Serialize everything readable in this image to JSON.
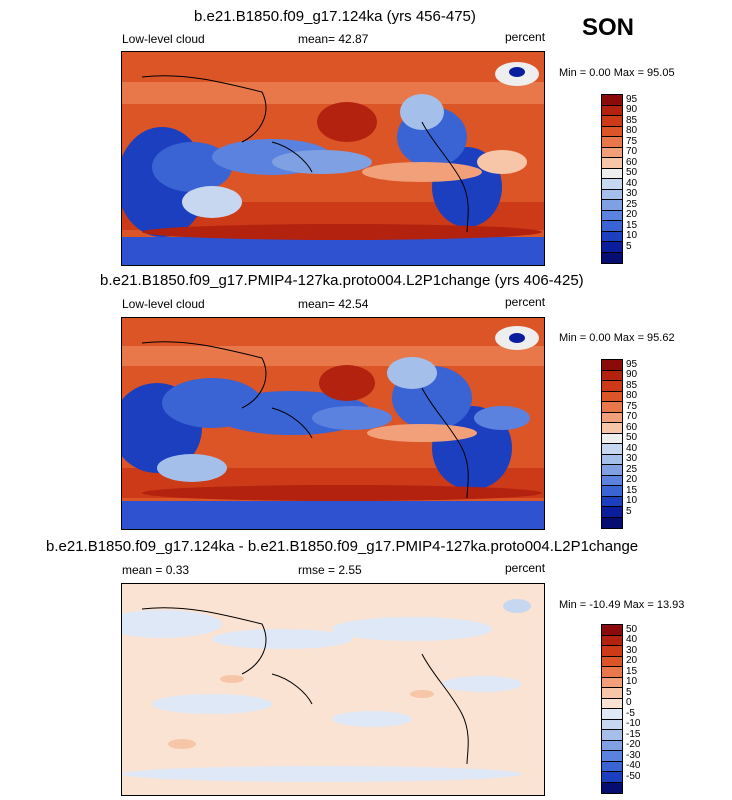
{
  "season": "SON",
  "panels": [
    {
      "title": "b.e21.B1850.f09_g17.124ka (yrs 456-475)",
      "left_label": "Low-level cloud",
      "center_label": "mean=  42.87",
      "right_label": "percent",
      "minmax": "Min =   0.00 Max =  95.05",
      "colorbar_labels": [
        "95",
        "90",
        "85",
        "80",
        "75",
        "70",
        "60",
        "50",
        "40",
        "30",
        "25",
        "20",
        "15",
        "10",
        "5"
      ],
      "colorbar_colors": [
        "#8b0a0a",
        "#b3210f",
        "#cc3a17",
        "#dc5527",
        "#e8784a",
        "#f2a07a",
        "#f7c5a8",
        "#eeeeee",
        "#c8d7f0",
        "#a4bfea",
        "#7fa1e4",
        "#5b82de",
        "#3a63d4",
        "#1b3fbf",
        "#0a1d9c",
        "#050d70"
      ]
    },
    {
      "title": "b.e21.B1850.f09_g17.PMIP4-127ka.proto004.L2P1change (yrs 406-425)",
      "left_label": "Low-level cloud",
      "center_label": "mean=  42.54",
      "right_label": "percent",
      "minmax": "Min =   0.00 Max =  95.62",
      "colorbar_labels": [
        "95",
        "90",
        "85",
        "80",
        "75",
        "70",
        "60",
        "50",
        "40",
        "30",
        "25",
        "20",
        "15",
        "10",
        "5"
      ],
      "colorbar_colors": [
        "#8b0a0a",
        "#b3210f",
        "#cc3a17",
        "#dc5527",
        "#e8784a",
        "#f2a07a",
        "#f7c5a8",
        "#eeeeee",
        "#c8d7f0",
        "#a4bfea",
        "#7fa1e4",
        "#5b82de",
        "#3a63d4",
        "#1b3fbf",
        "#0a1d9c",
        "#050d70"
      ]
    },
    {
      "title": "b.e21.B1850.f09_g17.124ka - b.e21.B1850.f09_g17.PMIP4-127ka.proto004.L2P1change",
      "left_label": "mean =   0.33",
      "center_label": "rmse =   2.55",
      "right_label": "percent",
      "minmax": "Min = -10.49 Max =  13.93",
      "colorbar_labels": [
        "50",
        "40",
        "30",
        "20",
        "15",
        "10",
        "5",
        "0",
        "-5",
        "-10",
        "-15",
        "-20",
        "-30",
        "-40",
        "-50"
      ],
      "colorbar_colors": [
        "#8b0a0a",
        "#b3210f",
        "#cc3a17",
        "#dc5527",
        "#e8784a",
        "#f2a07a",
        "#f7c5a8",
        "#fbe3d4",
        "#dfe8f6",
        "#c8d7f0",
        "#a4bfea",
        "#7fa1e4",
        "#5b82de",
        "#3a63d4",
        "#1b3fbf",
        "#050d70"
      ]
    }
  ]
}
